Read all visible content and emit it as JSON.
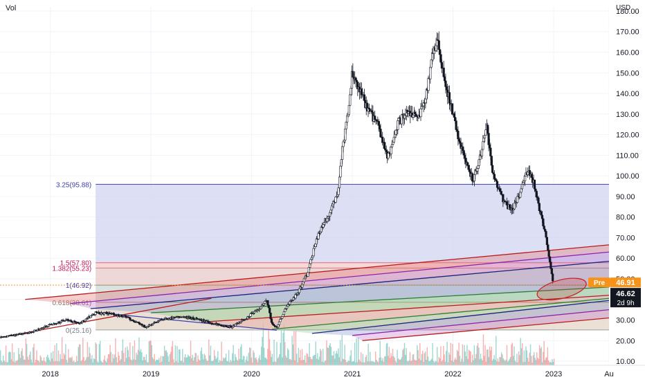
{
  "volume_label": "Vol",
  "currency": "USD",
  "chart_data": {
    "type": "candlestick",
    "title": "",
    "ylim": [
      8,
      182
    ],
    "y_ticks": [
      10,
      20,
      30,
      40,
      50,
      60,
      70,
      80,
      90,
      100,
      110,
      120,
      130,
      140,
      150,
      160,
      170,
      180
    ],
    "y_tick_labels": [
      "10.00",
      "20.00",
      "30.00",
      "40.00",
      "50.00",
      "60.00",
      "70.00",
      "80.00",
      "90.00",
      "100.00",
      "110.00",
      "120.00",
      "130.00",
      "140.00",
      "150.00",
      "160.00",
      "170.00",
      "180.00"
    ],
    "x_range": [
      2017.5,
      2023.55
    ],
    "x_ticks": [
      {
        "t": 2018.0,
        "label": "2018"
      },
      {
        "t": 2019.0,
        "label": "2019"
      },
      {
        "t": 2020.0,
        "label": "2020"
      },
      {
        "t": 2021.0,
        "label": "2021"
      },
      {
        "t": 2022.0,
        "label": "2022"
      },
      {
        "t": 2023.0,
        "label": "2023"
      },
      {
        "t": 2023.55,
        "label": "Au"
      }
    ],
    "price_path": [
      [
        2017.5,
        21.5
      ],
      [
        2017.8,
        24.0
      ],
      [
        2018.0,
        27.5
      ],
      [
        2018.15,
        30.0
      ],
      [
        2018.3,
        28.5
      ],
      [
        2018.45,
        33.5
      ],
      [
        2018.6,
        33.0
      ],
      [
        2018.75,
        31.5
      ],
      [
        2018.95,
        26.5
      ],
      [
        2019.1,
        30.0
      ],
      [
        2019.3,
        31.5
      ],
      [
        2019.45,
        30.5
      ],
      [
        2019.6,
        28.5
      ],
      [
        2019.8,
        26.5
      ],
      [
        2019.95,
        31.0
      ],
      [
        2020.1,
        36.5
      ],
      [
        2020.15,
        40.0
      ],
      [
        2020.2,
        28.0
      ],
      [
        2020.25,
        26.5
      ],
      [
        2020.35,
        37.0
      ],
      [
        2020.45,
        42.5
      ],
      [
        2020.55,
        52.0
      ],
      [
        2020.65,
        70.0
      ],
      [
        2020.75,
        80.0
      ],
      [
        2020.85,
        90.0
      ],
      [
        2020.9,
        112.0
      ],
      [
        2020.95,
        128.0
      ],
      [
        2021.0,
        150.0
      ],
      [
        2021.05,
        145.0
      ],
      [
        2021.15,
        132.0
      ],
      [
        2021.25,
        125.0
      ],
      [
        2021.35,
        108.0
      ],
      [
        2021.45,
        125.0
      ],
      [
        2021.55,
        132.0
      ],
      [
        2021.65,
        128.0
      ],
      [
        2021.72,
        135.0
      ],
      [
        2021.8,
        160.0
      ],
      [
        2021.85,
        165.0
      ],
      [
        2021.9,
        150.0
      ],
      [
        2021.95,
        140.0
      ],
      [
        2022.05,
        120.0
      ],
      [
        2022.1,
        110.0
      ],
      [
        2022.2,
        98.0
      ],
      [
        2022.28,
        110.0
      ],
      [
        2022.33,
        125.0
      ],
      [
        2022.4,
        100.0
      ],
      [
        2022.5,
        88.0
      ],
      [
        2022.58,
        83.0
      ],
      [
        2022.65,
        90.0
      ],
      [
        2022.75,
        103.0
      ],
      [
        2022.8,
        97.0
      ],
      [
        2022.87,
        81.0
      ],
      [
        2022.92,
        72.0
      ],
      [
        2022.97,
        55.0
      ],
      [
        2023.0,
        46.6
      ]
    ],
    "volume_scale": [
      0,
      30
    ],
    "fib_extension": {
      "t_start": 2018.45,
      "t_end": 2023.55,
      "levels": [
        {
          "label": "3.25(95.88)",
          "price": 95.88,
          "fill": "#d1d4f2",
          "line": "#3f3fa8",
          "text_color": "#3f3fa8"
        },
        {
          "label": "1.5(57.80)",
          "price": 57.8,
          "fill": "#f5c9cc",
          "line": "#e06a73",
          "text_color": "#c2185b"
        },
        {
          "label": "1.382(55.23)",
          "price": 55.23,
          "fill": "#e8c9c9",
          "line": "#cc8080",
          "text_color": "#c2185b"
        },
        {
          "label": "1(46.92)",
          "price": 46.92,
          "fill": "#cfd8d8",
          "line": "#5e9ea0",
          "text_color": "#3f3fa8"
        },
        {
          "label": "0.618(38.61)",
          "price": 38.61,
          "fill": "#e3d6c8",
          "line": "#b08a6a",
          "text_color": "#8d6e63"
        },
        {
          "label": "0(25.16)",
          "price": 25.16,
          "fill": "#ececec",
          "line": "#9e9e9e",
          "text_color": "#787b86"
        }
      ]
    },
    "pitchfork_lines": [
      {
        "color": "#b71c1c",
        "p0": [
          2017.75,
          40.0
        ],
        "p1": [
          2023.55,
          66.5
        ]
      },
      {
        "color": "#8e24aa",
        "p0": [
          2018.2,
          38.0
        ],
        "p1": [
          2023.55,
          63.0
        ]
      },
      {
        "color": "#1a237e",
        "p0": [
          2018.4,
          35.5
        ],
        "p1": [
          2023.55,
          58.5
        ]
      },
      {
        "color": "#2e7d32",
        "p0": [
          2019.0,
          33.5
        ],
        "p1": [
          2023.55,
          46.0
        ]
      },
      {
        "color": "#b71c1c",
        "p0": [
          2019.5,
          29.0
        ],
        "p1": [
          2023.55,
          42.0
        ]
      },
      {
        "color": "#2e7d32",
        "p0": [
          2020.2,
          25.5
        ],
        "p1": [
          2023.55,
          40.5
        ]
      },
      {
        "color": "#1a237e",
        "p0": [
          2020.6,
          23.5
        ],
        "p1": [
          2023.55,
          39.5
        ]
      },
      {
        "color": "#8e24aa",
        "p0": [
          2021.0,
          22.5
        ],
        "p1": [
          2023.55,
          35.0
        ]
      },
      {
        "color": "#b71c1c",
        "p0": [
          2021.1,
          20.0
        ],
        "p1": [
          2023.55,
          31.0
        ]
      },
      {
        "color": "#b71c1c",
        "p0": [
          2017.5,
          21.5
        ],
        "p1": [
          2019.6,
          40.5
        ]
      },
      {
        "color": "#3f3fa8",
        "p0": [
          2018.5,
          33.5
        ],
        "p1": [
          2020.25,
          25.0
        ]
      }
    ],
    "ellipse": {
      "t": 2023.08,
      "price": 45.0,
      "rx_t": 0.25,
      "ry_price": 4.5,
      "color": "#c62828"
    },
    "current_price_line": 46.92,
    "badges": [
      {
        "kind": "pre",
        "label": "Pre",
        "value": "46.91",
        "color": "#f7931a"
      },
      {
        "kind": "last",
        "value": "46.62",
        "countdown": "2d 9h",
        "color": "#131722"
      }
    ]
  }
}
